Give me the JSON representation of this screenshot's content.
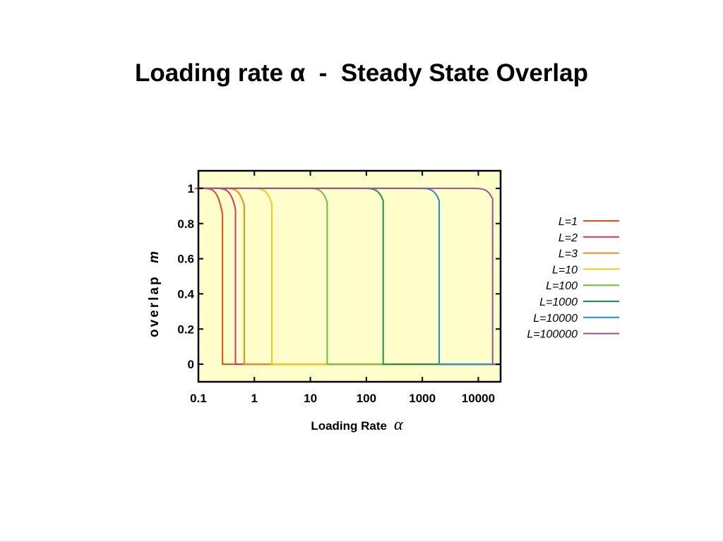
{
  "slide": {
    "title": "Loading rate α  -  Steady State Overlap"
  },
  "chart_data": {
    "type": "line",
    "x_scale": "log",
    "xlim": [
      0.1,
      25000
    ],
    "ylim": [
      -0.1,
      1.1
    ],
    "xticks": [
      {
        "value": 0.1,
        "label": "0.1"
      },
      {
        "value": 1,
        "label": "1"
      },
      {
        "value": 10,
        "label": "10"
      },
      {
        "value": 100,
        "label": "100"
      },
      {
        "value": 1000,
        "label": "1000"
      },
      {
        "value": 10000,
        "label": "10000"
      }
    ],
    "yticks": [
      {
        "value": 0,
        "label": "0"
      },
      {
        "value": 0.2,
        "label": "0.2"
      },
      {
        "value": 0.4,
        "label": "0.4"
      },
      {
        "value": 0.6,
        "label": "0.6"
      },
      {
        "value": 0.8,
        "label": "0.8"
      },
      {
        "value": 1,
        "label": "1"
      }
    ],
    "xlabel": "Loading Rate",
    "xlabel_symbol": "α",
    "ylabel": "overlap",
    "ylabel_symbol": "m",
    "plot_background": "#ffffcc",
    "grid": false,
    "legend_position": "right",
    "series": [
      {
        "name": "L=1",
        "color": "#e04a1c",
        "critical_alpha": 0.27,
        "overlap_at_critical": 0.85
      },
      {
        "name": "L=2",
        "color": "#d9336b",
        "critical_alpha": 0.46,
        "overlap_at_critical": 0.88
      },
      {
        "name": "L=3",
        "color": "#f28a1e",
        "critical_alpha": 0.66,
        "overlap_at_critical": 0.9
      },
      {
        "name": "L=10",
        "color": "#f2c81a",
        "critical_alpha": 2.05,
        "overlap_at_critical": 0.91
      },
      {
        "name": "L=100",
        "color": "#6fbf3a",
        "critical_alpha": 20,
        "overlap_at_critical": 0.92
      },
      {
        "name": "L=1000",
        "color": "#1f8f4e",
        "critical_alpha": 200,
        "overlap_at_critical": 0.93
      },
      {
        "name": "L=10000",
        "color": "#1e8fd6",
        "critical_alpha": 2000,
        "overlap_at_critical": 0.93
      },
      {
        "name": "L=100000",
        "color": "#a0508c",
        "critical_alpha": 18000,
        "overlap_at_critical": 0.94
      }
    ]
  }
}
